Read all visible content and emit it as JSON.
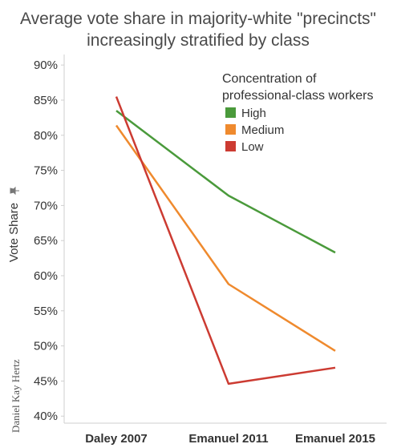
{
  "chart_data": {
    "type": "line",
    "title": [
      "Average vote share in majority-white \"precincts\"",
      "increasingly stratified by class"
    ],
    "ylabel": "Vote Share",
    "ylabel_icon": "pin-icon",
    "categories": [
      "Daley 2007",
      "Emanuel 2011",
      "Emanuel 2015"
    ],
    "yticks": [
      "90%",
      "85%",
      "80%",
      "75%",
      "70%",
      "65%",
      "60%",
      "55%",
      "50%",
      "45%",
      "40%"
    ],
    "ylim": [
      39.0,
      91.5
    ],
    "legend": {
      "title": [
        "Concentration of",
        "professional-class workers"
      ],
      "placement": "top-right"
    },
    "series": [
      {
        "name": "High",
        "color": "#4a9a3b",
        "values": [
          83.5,
          71.4,
          63.3
        ]
      },
      {
        "name": "Medium",
        "color": "#ef8a2e",
        "values": [
          81.4,
          58.8,
          49.3
        ]
      },
      {
        "name": "Low",
        "color": "#cc3b32",
        "values": [
          85.5,
          44.6,
          46.9
        ]
      }
    ],
    "signature": "Daniel Kay Hertz"
  }
}
